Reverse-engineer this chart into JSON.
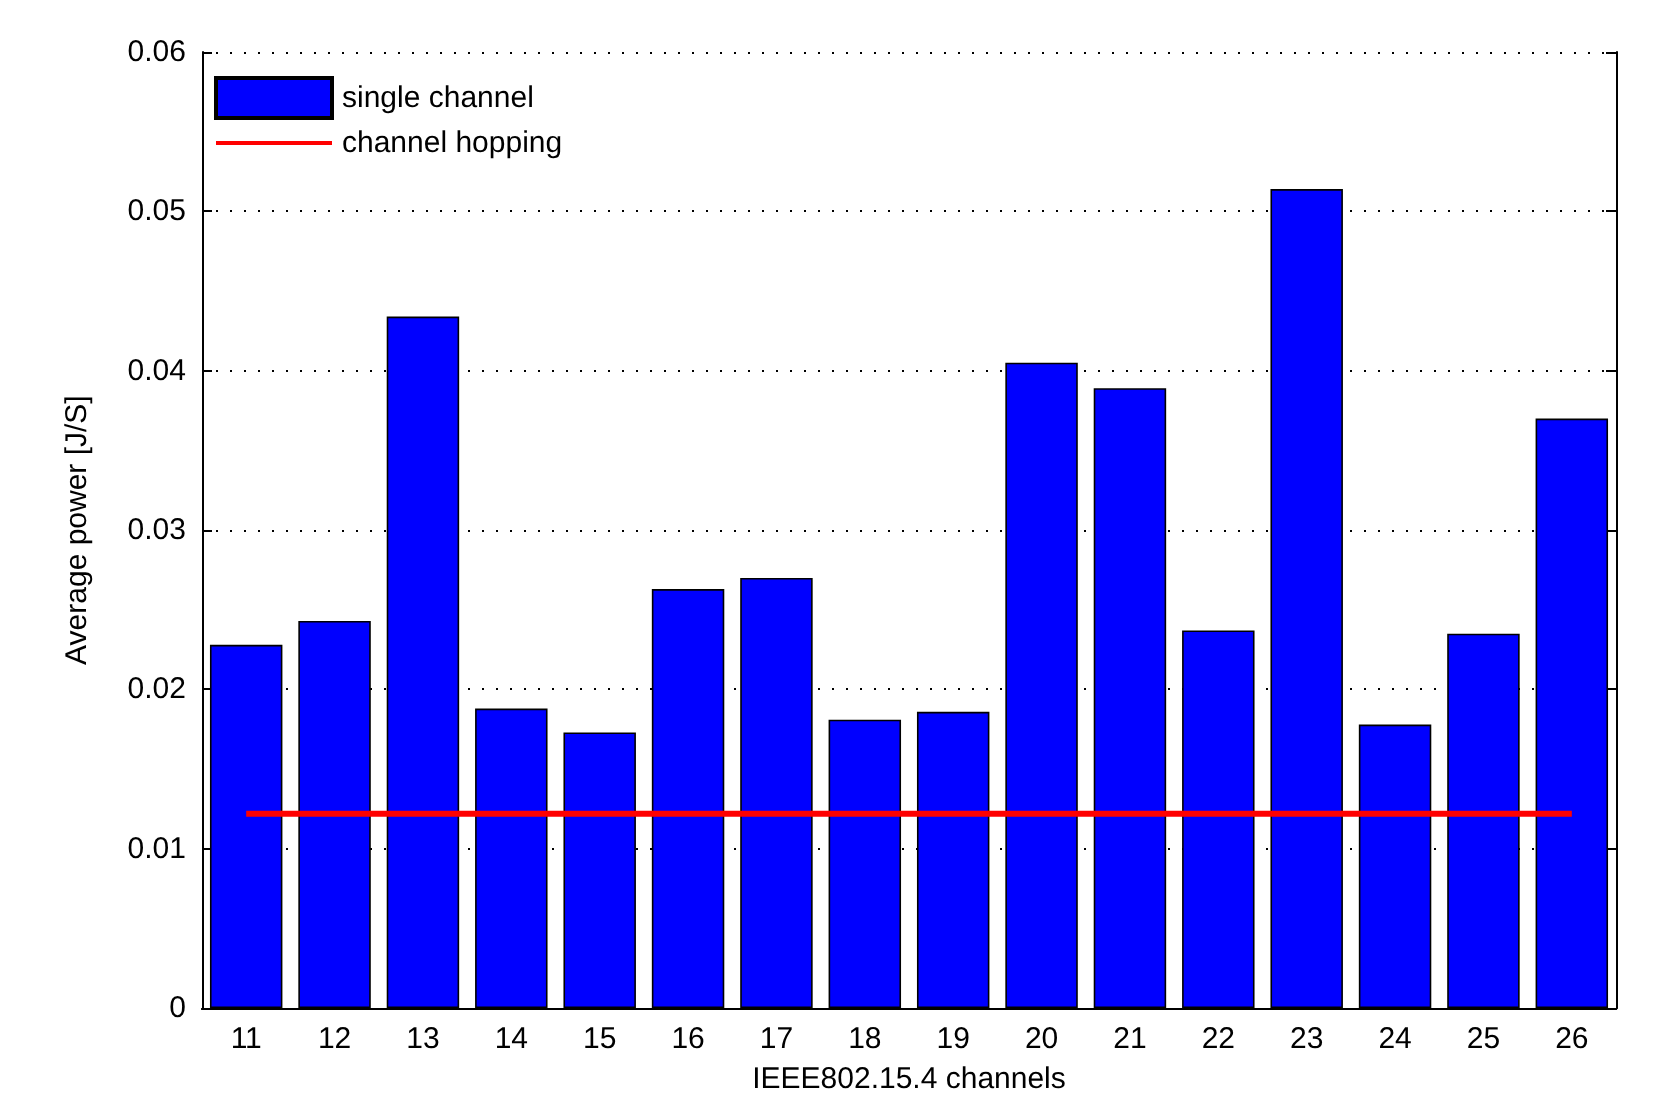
{
  "chart_data": {
    "type": "bar",
    "xlabel": "IEEE802.15.4 channels",
    "ylabel": "Average power [J/S]",
    "categories": [
      "11",
      "12",
      "13",
      "14",
      "15",
      "16",
      "17",
      "18",
      "19",
      "20",
      "21",
      "22",
      "23",
      "24",
      "25",
      "26"
    ],
    "series": [
      {
        "name": "single channel",
        "color": "#0000ff",
        "values": [
          0.0228,
          0.0243,
          0.0434,
          0.0188,
          0.0173,
          0.0263,
          0.027,
          0.0181,
          0.0186,
          0.0405,
          0.0389,
          0.0237,
          0.0514,
          0.0178,
          0.0235,
          0.037
        ]
      },
      {
        "name": "channel hopping",
        "type": "line",
        "color": "#ff0000",
        "values": [
          0.0122,
          0.0122,
          0.0122,
          0.0122,
          0.0122,
          0.0122,
          0.0122,
          0.0122,
          0.0122,
          0.0122,
          0.0122,
          0.0122,
          0.0122,
          0.0122,
          0.0122,
          0.0122
        ]
      }
    ],
    "ylim": [
      0,
      0.06
    ],
    "yticks": [
      0,
      0.01,
      0.02,
      0.03,
      0.04,
      0.05,
      0.06
    ],
    "grid": "y",
    "legend": "top left",
    "marker": "none",
    "line_style": "solid"
  }
}
